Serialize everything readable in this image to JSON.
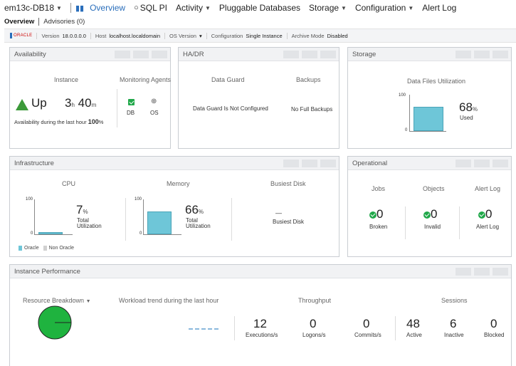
{
  "topnav": {
    "target": "em13c-DB18",
    "items": [
      "Overview",
      "SQL PI",
      "Activity",
      "Pluggable Databases",
      "Storage",
      "Configuration",
      "Alert Log"
    ]
  },
  "subtabs": {
    "overview": "Overview",
    "advisories": "Advisories (0)"
  },
  "infobar": {
    "logo": "ORACLE",
    "version_label": "Version",
    "version": "18.0.0.0.0",
    "host_label": "Host",
    "host": "localhost.localdomain",
    "os_label": "OS Version",
    "config_label": "Configuration",
    "config": "Single Instance",
    "archive_label": "Archive Mode",
    "archive": "Disabled"
  },
  "availability": {
    "title": "Availability",
    "instance_label": "Instance",
    "agents_label": "Monitoring Agents",
    "status": "Up",
    "uptime_hours": "3",
    "hours_unit": "h",
    "uptime_minutes": "40",
    "minutes_unit": "m",
    "last_hour_label": "Availability during the last hour",
    "last_hour_value": "100",
    "pct": "%",
    "agent_db": "DB",
    "agent_os": "OS"
  },
  "hadr": {
    "title": "HA/DR",
    "dataguard_label": "Data Guard",
    "backups_label": "Backups",
    "dataguard_value": "Data Guard Is Not Configured",
    "backups_value": "No Full Backups"
  },
  "storage": {
    "title": "Storage",
    "label": "Data Files Utilization",
    "value": "68",
    "pct": "%",
    "used_label": "Used",
    "axis_max": "100",
    "axis_min": "0",
    "fill": 0.68
  },
  "infrastructure": {
    "title": "Infrastructure",
    "cpu_label": "CPU",
    "cpu_value": "7",
    "cpu_fill": 0.07,
    "memory_label": "Memory",
    "memory_value": "66",
    "memory_fill": 0.66,
    "pct": "%",
    "total_util_label_1": "Total",
    "total_util_label_2": "Utilization",
    "axis_max": "100",
    "axis_min": "0",
    "busiest_disk_label": "Busiest Disk",
    "busiest_disk_value": "—",
    "busiest_disk_sub": "Busiest Disk",
    "legend_oracle": "Oracle",
    "legend_non_oracle": "Non Oracle"
  },
  "operational": {
    "title": "Operational",
    "jobs_label": "Jobs",
    "objects_label": "Objects",
    "alertlog_label": "Alert Log",
    "jobs_value": "0",
    "jobs_sub": "Broken",
    "objects_value": "0",
    "objects_sub": "Invalid",
    "alertlog_value": "0",
    "alertlog_sub": "Alert Log"
  },
  "performance": {
    "title": "Instance Performance",
    "resource_label": "Resource Breakdown",
    "workload_label": "Workload trend during the last hour",
    "throughput_label": "Throughput",
    "sessions_label": "Sessions",
    "metrics": [
      {
        "value": "12",
        "label": "Executions/s"
      },
      {
        "value": "0",
        "label": "Logons/s"
      },
      {
        "value": "0",
        "label": "Commits/s"
      },
      {
        "value": "48",
        "label": "Active"
      },
      {
        "value": "6",
        "label": "Inactive"
      },
      {
        "value": "0",
        "label": "Blocked"
      }
    ]
  },
  "colors": {
    "accent": "#2a6ebb",
    "bar": "#6ec6d8",
    "ok": "#21a84a",
    "up": "#3c9a3a",
    "pie": "#1fb33f"
  }
}
